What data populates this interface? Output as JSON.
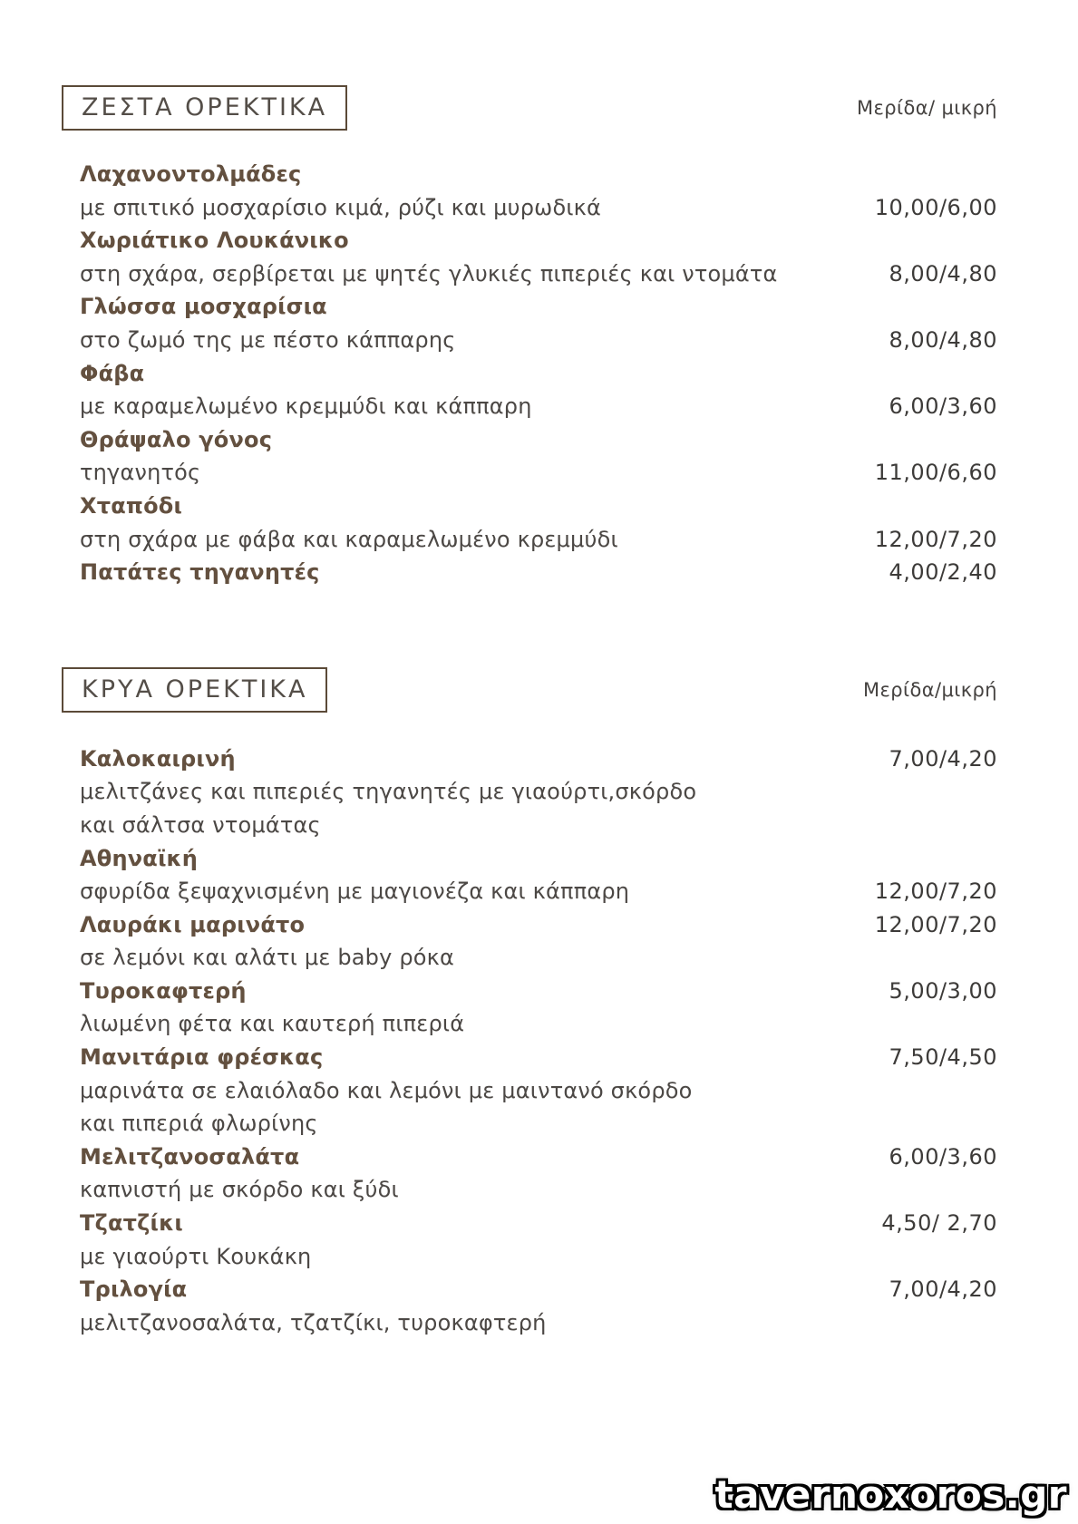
{
  "watermark": "tavernoxoros.gr",
  "colors": {
    "page_bg": "#ffffff",
    "section_title_text": "#544e48",
    "section_box_border": "#5b4a38",
    "item_name_text": "#63503f",
    "description_text": "#4c4845",
    "price_text": "#3d3b39",
    "watermark_fill": "#ffffff",
    "watermark_outline": "#000000"
  },
  "sections": [
    {
      "title": "ΖΕΣΤΑ ΟΡΕΚΤΙΚΑ",
      "portion_label": "Μερίδα/ μικρή",
      "items": [
        {
          "rows": [
            {
              "text": "Λαχανοντολμάδες",
              "bold": true
            },
            {
              "text": "με σπιτικό μοσχαρίσιο κιμά, ρύζι και μυρωδικά",
              "bold": false,
              "price": "10,00/6,00"
            }
          ]
        },
        {
          "rows": [
            {
              "text": "Χωριάτικο Λουκάνικο",
              "bold": true
            },
            {
              "text": "στη σχάρα, σερβίρεται με ψητές γλυκιές πιπεριές και ντομάτα",
              "bold": false,
              "price": "8,00/4,80"
            }
          ]
        },
        {
          "rows": [
            {
              "text": "Γλώσσα μοσχαρίσια",
              "bold": true
            },
            {
              "text": "στο ζωμό της με πέστο κάππαρης",
              "bold": false,
              "price": "8,00/4,80"
            }
          ]
        },
        {
          "rows": [
            {
              "text": "Φάβα",
              "bold": true
            },
            {
              "text": "με καραμελωμένο κρεμμύδι και κάππαρη",
              "bold": false,
              "price": "6,00/3,60"
            }
          ]
        },
        {
          "rows": [
            {
              "text": "Θράψαλο γόνος",
              "bold": true
            },
            {
              "text": "τηγανητός",
              "bold": false,
              "price": "11,00/6,60"
            }
          ]
        },
        {
          "rows": [
            {
              "text": "Χταπόδι",
              "bold": true
            },
            {
              "text": "στη σχάρα με φάβα και καραμελωμένο κρεμμύδι",
              "bold": false,
              "price": "12,00/7,20"
            }
          ]
        },
        {
          "rows": [
            {
              "text": "Πατάτες τηγανητές",
              "bold": true,
              "price": "4,00/2,40"
            }
          ]
        }
      ]
    },
    {
      "title": "ΚΡΥΑ ΟΡΕΚΤΙΚΑ",
      "portion_label": "Μερίδα/μικρή",
      "items": [
        {
          "rows": [
            {
              "text": "Καλοκαιρινή",
              "bold": true,
              "price": "7,00/4,20"
            },
            {
              "text": "μελιτζάνες και πιπεριές τηγανητές με γιαούρτι,σκόρδο",
              "bold": false
            },
            {
              "text": "και σάλτσα ντομάτας",
              "bold": false
            }
          ]
        },
        {
          "rows": [
            {
              "text": "Αθηναϊκή",
              "bold": true
            },
            {
              "text": "σφυρίδα ξεψαχνισμένη με μαγιονέζα και κάππαρη",
              "bold": false,
              "price": "12,00/7,20"
            }
          ]
        },
        {
          "rows": [
            {
              "text": "Λαυράκι μαρινάτο",
              "bold": true,
              "price": "12,00/7,20"
            },
            {
              "text": "σε λεμόνι και αλάτι με baby ρόκα",
              "bold": false
            }
          ]
        },
        {
          "rows": [
            {
              "text": "Τυροκαφτερή",
              "bold": true,
              "price": "5,00/3,00"
            },
            {
              "text": "λιωμένη φέτα και καυτερή πιπεριά",
              "bold": false
            }
          ]
        },
        {
          "rows": [
            {
              "text": "Μανιτάρια φρέσκας",
              "bold": true,
              "price": "7,50/4,50"
            },
            {
              "text": "μαρινάτα σε ελαιόλαδο και λεμόνι με μαιντανό σκόρδο",
              "bold": false
            },
            {
              "text": "και πιπεριά φλωρίνης",
              "bold": false
            }
          ]
        },
        {
          "rows": [
            {
              "text": "Μελιτζανοσαλάτα",
              "bold": true,
              "price": "6,00/3,60"
            },
            {
              "text": "καπνιστή με σκόρδο και ξύδι",
              "bold": false
            }
          ]
        },
        {
          "rows": [
            {
              "text": "Τζατζίκι",
              "bold": true,
              "price": "4,50/ 2,70"
            },
            {
              "text": "με γιαούρτι Κουκάκη",
              "bold": false
            }
          ]
        },
        {
          "rows": [
            {
              "text": "Τριλογία",
              "bold": true,
              "price": "7,00/4,20"
            },
            {
              "text": "μελιτζανοσαλάτα, τζατζίκι, τυροκαφτερή",
              "bold": false
            }
          ]
        }
      ]
    }
  ]
}
